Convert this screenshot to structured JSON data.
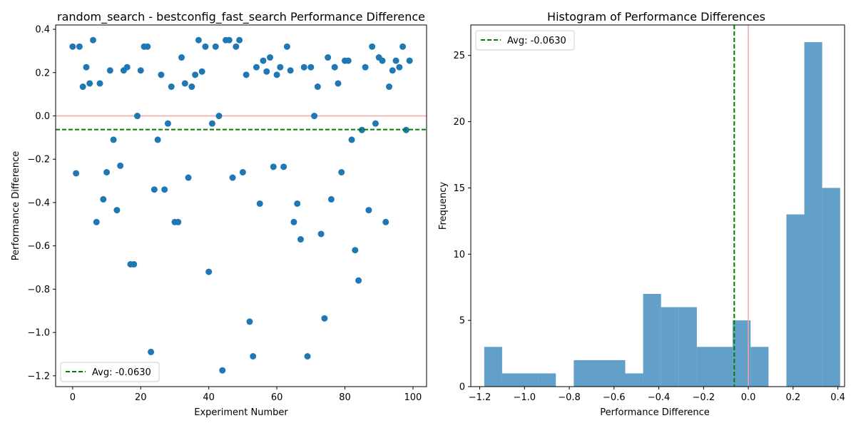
{
  "chart_data": [
    {
      "type": "scatter",
      "title": "random_search - bestconfig_fast_search Performance Difference",
      "xlabel": "Experiment Number",
      "ylabel": "Performance Difference",
      "xlim": [
        -5,
        104
      ],
      "ylim": [
        -1.25,
        0.42
      ],
      "xticks": [
        0,
        20,
        40,
        60,
        80,
        100
      ],
      "xtick_labels": [
        "0",
        "20",
        "40",
        "60",
        "80",
        "100"
      ],
      "yticks": [
        -1.2,
        -1.0,
        -0.8,
        -0.6,
        -0.4,
        -0.2,
        0.0,
        0.2,
        0.4
      ],
      "ytick_labels": [
        "−1.2",
        "−1.0",
        "−0.8",
        "−0.6",
        "−0.4",
        "−0.2",
        "0.0",
        "0.2",
        "0.4"
      ],
      "zero_line": 0.0,
      "average_line": {
        "value": -0.063,
        "label": "Avg: -0.0630"
      },
      "legend_position": "lower-left",
      "point_color": "#1f77b4",
      "zero_color": "#f4a3a3",
      "average_color": "#008000",
      "points": {
        "x": [
          0,
          1,
          2,
          3,
          4,
          5,
          6,
          7,
          8,
          9,
          10,
          11,
          12,
          13,
          14,
          15,
          16,
          17,
          18,
          19,
          20,
          21,
          22,
          23,
          24,
          25,
          26,
          27,
          28,
          29,
          30,
          31,
          32,
          33,
          34,
          35,
          36,
          37,
          38,
          39,
          40,
          41,
          42,
          43,
          44,
          45,
          46,
          47,
          48,
          49,
          50,
          51,
          52,
          53,
          54,
          55,
          56,
          57,
          58,
          59,
          60,
          61,
          62,
          63,
          64,
          65,
          66,
          67,
          68,
          69,
          70,
          71,
          72,
          73,
          74,
          75,
          76,
          77,
          78,
          79,
          80,
          81,
          82,
          83,
          84,
          85,
          86,
          87,
          88,
          89,
          90,
          91,
          92,
          93,
          94,
          95,
          96,
          97,
          98,
          99
        ],
        "y": [
          0.32,
          -0.265,
          0.32,
          0.135,
          0.225,
          0.15,
          0.35,
          -0.49,
          0.15,
          -0.385,
          -0.26,
          0.21,
          -0.11,
          -0.435,
          -0.23,
          0.21,
          0.225,
          -0.685,
          -0.685,
          0.0,
          0.21,
          0.32,
          0.32,
          -1.09,
          -0.34,
          -0.11,
          0.19,
          -0.34,
          -0.035,
          0.135,
          -0.49,
          -0.49,
          0.27,
          0.15,
          -0.285,
          0.135,
          0.19,
          0.35,
          0.205,
          0.32,
          -0.72,
          -0.035,
          0.32,
          0.0,
          -1.175,
          0.35,
          0.35,
          -0.285,
          0.32,
          0.35,
          -0.26,
          0.19,
          -0.95,
          -1.11,
          0.225,
          -0.405,
          0.255,
          0.205,
          0.27,
          -0.235,
          0.19,
          0.225,
          -0.235,
          0.32,
          0.21,
          -0.49,
          -0.405,
          -0.57,
          0.225,
          -1.11,
          0.225,
          0.0,
          0.135,
          -0.545,
          -0.935,
          0.27,
          -0.385,
          0.225,
          0.15,
          -0.26,
          0.255,
          0.255,
          -0.11,
          -0.62,
          -0.76,
          -0.065,
          0.225,
          -0.435,
          0.32,
          -0.035,
          0.27,
          0.255,
          -0.49,
          0.135,
          0.21,
          0.255,
          0.225,
          0.32,
          -0.065,
          0.255
        ]
      }
    },
    {
      "type": "bar",
      "title": "Histogram of Performance Differences",
      "xlabel": "Performance Difference",
      "ylabel": "Frequency",
      "xlim": [
        -1.24,
        0.43
      ],
      "ylim": [
        0,
        27.3
      ],
      "xticks": [
        -1.2,
        -1.0,
        -0.8,
        -0.6,
        -0.4,
        -0.2,
        0.0,
        0.2,
        0.4
      ],
      "xtick_labels": [
        "−1.2",
        "−1.0",
        "−0.8",
        "−0.6",
        "−0.4",
        "−0.2",
        "0.0",
        "0.2",
        "0.4"
      ],
      "yticks": [
        0,
        5,
        10,
        15,
        20,
        25
      ],
      "ytick_labels": [
        "0",
        "5",
        "10",
        "15",
        "20",
        "25"
      ],
      "zero_line": 0.0,
      "average_line": {
        "value": -0.063,
        "label": "Avg: -0.0630"
      },
      "legend_position": "upper-left",
      "bar_color": "#1f77b4",
      "zero_color": "#f4a3a3",
      "average_color": "#008000",
      "bins": {
        "edges": [
          -1.18,
          -1.1,
          -1.02,
          -0.94,
          -0.86,
          -0.78,
          -0.7,
          -0.62,
          -0.55,
          -0.47,
          -0.39,
          -0.31,
          -0.23,
          -0.15,
          -0.07,
          0.01,
          0.09,
          0.17,
          0.25,
          0.33
        ],
        "counts": [
          3,
          1,
          1,
          1,
          0,
          2,
          2,
          2,
          1,
          7,
          6,
          6,
          3,
          3,
          5,
          3,
          0,
          13,
          26,
          15
        ]
      }
    }
  ]
}
